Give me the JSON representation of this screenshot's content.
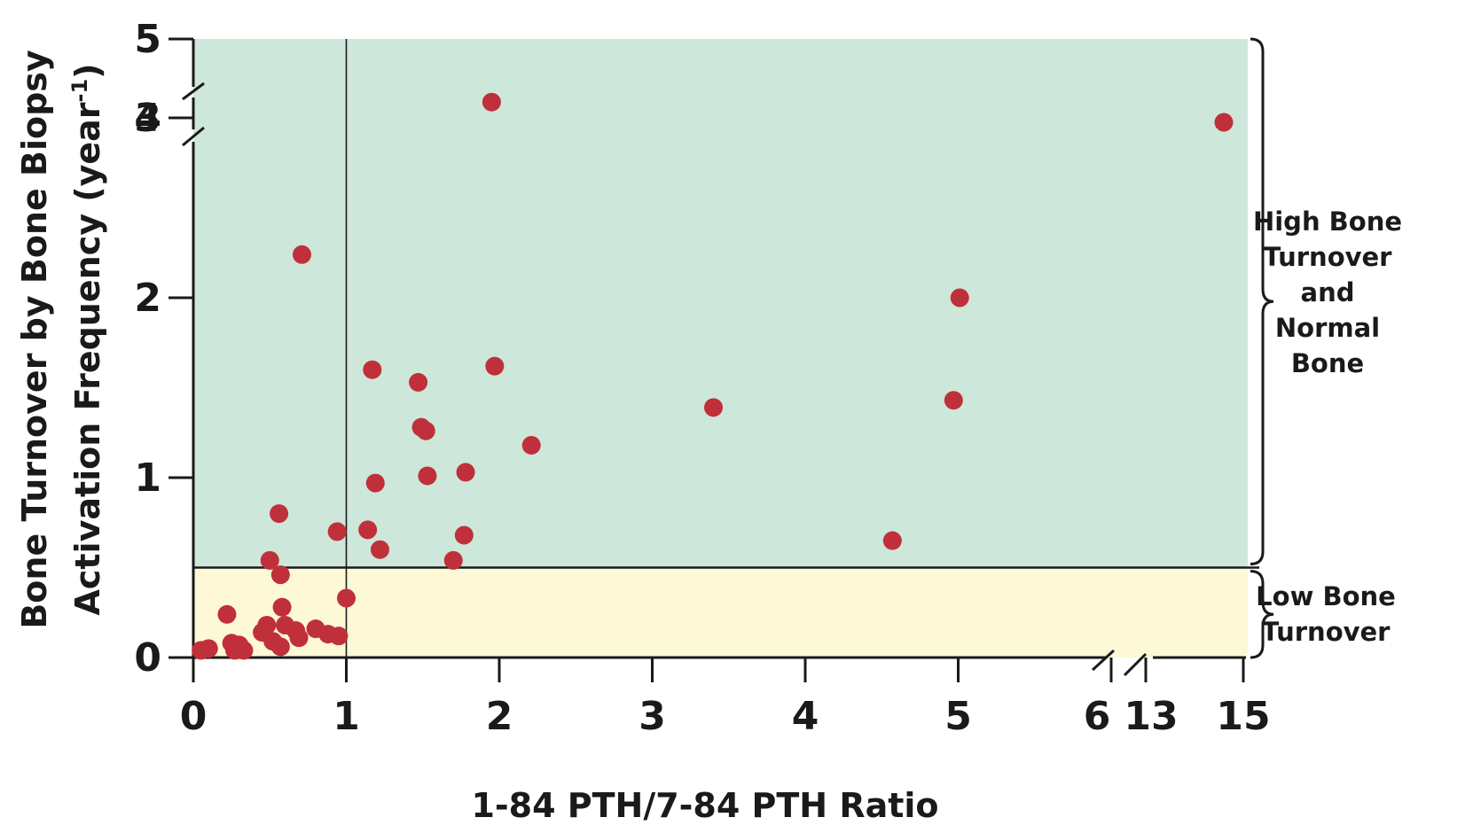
{
  "chart_data": {
    "type": "scatter",
    "title": "",
    "xlabel": "1-84 PTH/7-84 PTH Ratio",
    "ylabel_line1": "Bone Turnover by Bone Biopsy",
    "ylabel_line2": "Activation Frequency (year",
    "ylabel_superscript": "-1",
    "ylabel_close": ")",
    "x_axis": {
      "tick_labels": [
        "0",
        "1",
        "2",
        "3",
        "4",
        "5",
        "6",
        "13",
        "15"
      ],
      "break_between": [
        "6",
        "13"
      ]
    },
    "y_axis": {
      "tick_labels": [
        "0",
        "1",
        "2",
        "3",
        "4",
        "5"
      ],
      "break_between": [
        "3",
        "4"
      ]
    },
    "reference_lines": {
      "x": 1,
      "y": 0.5
    },
    "regions": [
      {
        "label_lines": [
          "High Bone",
          "Turnover",
          "and",
          "Normal",
          "Bone"
        ],
        "y_from": 0.5,
        "y_to": 5,
        "color": "#cde7da"
      },
      {
        "label_lines": [
          "Low Bone",
          "Turnover"
        ],
        "y_from": 0,
        "y_to": 0.5,
        "color": "#fdf9d6"
      }
    ],
    "point_color": "#c0303a",
    "points": [
      {
        "x": 0.05,
        "y": 0.04
      },
      {
        "x": 0.1,
        "y": 0.05
      },
      {
        "x": 0.22,
        "y": 0.24
      },
      {
        "x": 0.25,
        "y": 0.08
      },
      {
        "x": 0.27,
        "y": 0.04
      },
      {
        "x": 0.3,
        "y": 0.07
      },
      {
        "x": 0.33,
        "y": 0.04
      },
      {
        "x": 0.45,
        "y": 0.14
      },
      {
        "x": 0.48,
        "y": 0.18
      },
      {
        "x": 0.5,
        "y": 0.54
      },
      {
        "x": 0.52,
        "y": 0.09
      },
      {
        "x": 0.56,
        "y": 0.8
      },
      {
        "x": 0.57,
        "y": 0.46
      },
      {
        "x": 0.57,
        "y": 0.06
      },
      {
        "x": 0.58,
        "y": 0.28
      },
      {
        "x": 0.6,
        "y": 0.18
      },
      {
        "x": 0.67,
        "y": 0.15
      },
      {
        "x": 0.69,
        "y": 0.11
      },
      {
        "x": 0.71,
        "y": 2.24
      },
      {
        "x": 0.8,
        "y": 0.16
      },
      {
        "x": 0.88,
        "y": 0.13
      },
      {
        "x": 0.94,
        "y": 0.7
      },
      {
        "x": 0.95,
        "y": 0.12
      },
      {
        "x": 1.0,
        "y": 0.33
      },
      {
        "x": 1.14,
        "y": 0.71
      },
      {
        "x": 1.17,
        "y": 1.6
      },
      {
        "x": 1.19,
        "y": 0.97
      },
      {
        "x": 1.22,
        "y": 0.6
      },
      {
        "x": 1.47,
        "y": 1.53
      },
      {
        "x": 1.49,
        "y": 1.28
      },
      {
        "x": 1.52,
        "y": 1.26
      },
      {
        "x": 1.53,
        "y": 1.01
      },
      {
        "x": 1.7,
        "y": 0.54
      },
      {
        "x": 1.77,
        "y": 0.68
      },
      {
        "x": 1.78,
        "y": 1.03
      },
      {
        "x": 1.95,
        "y": 4.2
      },
      {
        "x": 1.97,
        "y": 1.62
      },
      {
        "x": 2.21,
        "y": 1.18
      },
      {
        "x": 3.4,
        "y": 1.39
      },
      {
        "x": 4.57,
        "y": 0.65
      },
      {
        "x": 4.97,
        "y": 1.43
      },
      {
        "x": 5.01,
        "y": 2.0
      },
      {
        "x": 14.6,
        "y": 3.8
      }
    ]
  }
}
